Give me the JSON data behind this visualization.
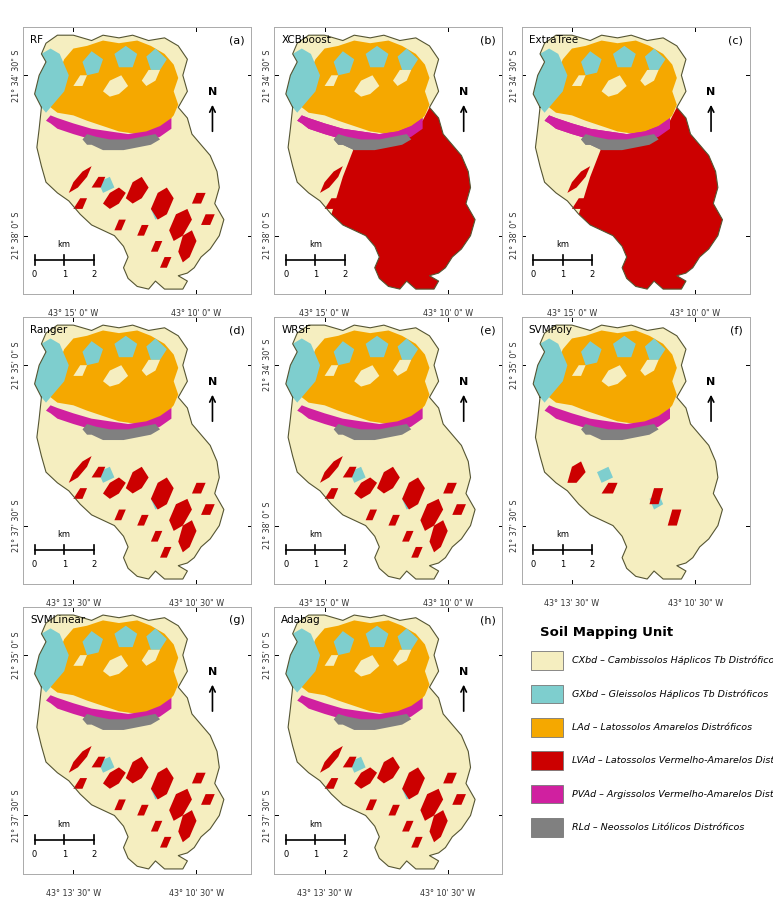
{
  "figure_width": 7.73,
  "figure_height": 9.06,
  "background_color": "#ffffff",
  "panels": [
    {
      "label": "RF",
      "letter": "(a)",
      "row": 0,
      "col": 0
    },
    {
      "label": "XCBboost",
      "letter": "(b)",
      "row": 0,
      "col": 1
    },
    {
      "label": "ExtraTree",
      "letter": "(c)",
      "row": 0,
      "col": 2
    },
    {
      "label": "Ranger",
      "letter": "(d)",
      "row": 1,
      "col": 0
    },
    {
      "label": "WRSF",
      "letter": "(e)",
      "row": 1,
      "col": 1
    },
    {
      "label": "SVMPoly",
      "letter": "(f)",
      "row": 1,
      "col": 2
    },
    {
      "label": "SVMLinear",
      "letter": "(g)",
      "row": 2,
      "col": 0
    },
    {
      "label": "Adabag",
      "letter": "(h)",
      "row": 2,
      "col": 1
    }
  ],
  "x_labels": {
    "row0": [
      "43° 15' 0\" W",
      "43° 10' 0\" W"
    ],
    "row1_d": [
      "43° 13' 30\" W",
      "43° 10' 30\" W"
    ],
    "row1_e": [
      "43° 15' 0\" W",
      "43° 10' 0\" W"
    ],
    "row1_f": [
      "43° 13' 30\" W",
      "43° 10' 30\" W"
    ],
    "row2": [
      "43° 13' 30\" W",
      "43° 10' 30\" W"
    ]
  },
  "y_labels": {
    "row0": [
      "21° 34' 30\" S",
      "21° 38' 0\" S"
    ],
    "row1_d": [
      "21° 35' 0\" S",
      "21° 37' 30\" S"
    ],
    "row1_e": [
      "21° 34' 30\" S",
      "21° 38' 0\" S"
    ],
    "row1_f": [
      "21° 35' 0\" S",
      "21° 37' 30\" S"
    ],
    "row2": [
      "21° 35' 0\" S",
      "21° 37' 30\" S"
    ]
  },
  "legend_title": "Soil Mapping Unit",
  "legend_items": [
    {
      "color": "#f5eec0",
      "label": "CXbd – Cambissolos Háplicos Tb Distróficos"
    },
    {
      "color": "#7ecece",
      "label": "GXbd – Gleissolos Háplicos Tb Distróficos"
    },
    {
      "color": "#f5a800",
      "label": "LAd – Latossolos Amarelos Distróficos"
    },
    {
      "color": "#cc0000",
      "label": "LVAd – Latossolos Vermelho-Amarelos Distróf"
    },
    {
      "color": "#d020a0",
      "label": "PVAd – Argissolos Vermelho-Amarelos Distrófi"
    },
    {
      "color": "#808080",
      "label": "RLd – Neossolos Litólicos Distróficos"
    }
  ],
  "colors": {
    "CXbd": "#f5eec0",
    "GXbd": "#7ecece",
    "LAd": "#f5a800",
    "LVAd": "#cc0000",
    "PVAd": "#d020a0",
    "RLd": "#808080"
  },
  "map_outline_color": "#555533",
  "panel_border_color": "#aaaaaa"
}
